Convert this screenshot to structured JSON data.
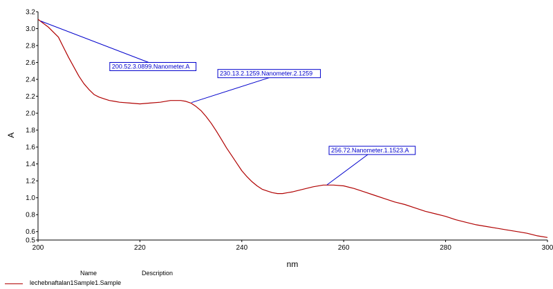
{
  "chart_data": {
    "type": "line",
    "xlabel": "nm",
    "ylabel": "A",
    "xlim": [
      200,
      300
    ],
    "ylim": [
      0.5,
      3.2
    ],
    "x_ticks": [
      200,
      220,
      240,
      260,
      280,
      300
    ],
    "y_ticks": [
      0.5,
      0.6,
      0.8,
      1.0,
      1.2,
      1.4,
      1.6,
      1.8,
      2.0,
      2.2,
      2.4,
      2.6,
      2.8,
      3.0,
      3.2
    ],
    "x_tick_labels": [
      "200",
      "220",
      "240",
      "260",
      "280",
      "300"
    ],
    "y_tick_labels": [
      "0.5",
      "0.6",
      "0.8",
      "1.0",
      "1.2",
      "1.4",
      "1.6",
      "1.8",
      "2.0",
      "2.2",
      "2.4",
      "2.6",
      "2.8",
      "3.0",
      "3.2"
    ],
    "grid": false,
    "series": [
      {
        "name": "lechebnaftalan1Sample1.Sample",
        "color": "#b00000",
        "x": [
          200,
          202,
          204,
          205,
          206,
          207,
          208,
          209,
          210,
          211,
          212,
          213,
          214,
          215,
          216,
          218,
          220,
          222,
          224,
          226,
          227,
          228,
          229,
          230,
          231,
          232,
          233,
          234,
          235,
          236,
          237,
          238,
          239,
          240,
          241,
          242,
          243,
          244,
          245,
          246,
          247,
          248,
          249,
          250,
          252,
          254,
          256,
          257,
          258,
          260,
          262,
          264,
          266,
          268,
          270,
          272,
          274,
          276,
          278,
          280,
          282,
          284,
          286,
          288,
          290,
          292,
          294,
          296,
          298,
          300
        ],
        "y": [
          3.11,
          3.02,
          2.9,
          2.78,
          2.66,
          2.55,
          2.44,
          2.35,
          2.28,
          2.22,
          2.19,
          2.17,
          2.15,
          2.14,
          2.13,
          2.12,
          2.11,
          2.12,
          2.13,
          2.15,
          2.15,
          2.15,
          2.14,
          2.12,
          2.08,
          2.03,
          1.96,
          1.88,
          1.79,
          1.69,
          1.59,
          1.5,
          1.41,
          1.32,
          1.25,
          1.19,
          1.14,
          1.1,
          1.08,
          1.06,
          1.05,
          1.05,
          1.06,
          1.07,
          1.1,
          1.13,
          1.15,
          1.15,
          1.15,
          1.14,
          1.11,
          1.07,
          1.03,
          0.99,
          0.95,
          0.92,
          0.88,
          0.84,
          0.81,
          0.78,
          0.74,
          0.71,
          0.68,
          0.66,
          0.64,
          0.62,
          0.6,
          0.58,
          0.55,
          0.53
        ]
      }
    ],
    "annotations": [
      {
        "text": "200.52.3.0899.Nanometer.A",
        "x": 200.52,
        "y": 3.0899
      },
      {
        "text": "230.13.2.1259.Nanometer.2.1259",
        "x": 230.13,
        "y": 2.1259
      },
      {
        "text": "256.72.Nanometer.1.1523.A",
        "x": 256.72,
        "y": 1.1523
      }
    ],
    "annotation_color": "#0000cc",
    "legend": {
      "headers": {
        "name": "Name",
        "description": "Description"
      },
      "entries": [
        {
          "label": "lechebnaftalan1Sample1.Sample",
          "color": "#b00000"
        }
      ],
      "placement": "bottom-left"
    }
  }
}
